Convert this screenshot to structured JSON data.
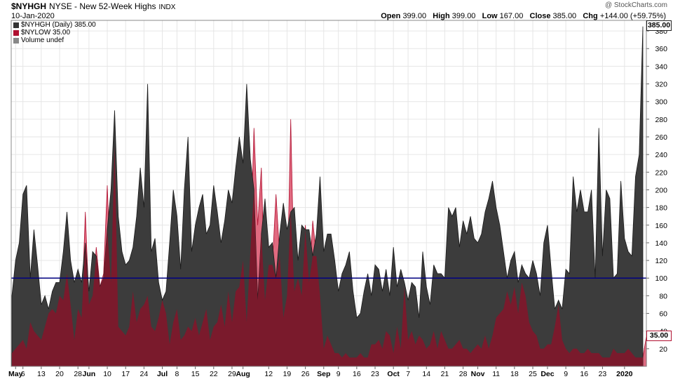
{
  "header": {
    "symbol": "$NYHGH",
    "description": "NYSE - New 52-Week Highs",
    "exchange": "INDX",
    "date": "10-Jan-2020",
    "watermark": "@ StockCharts.com",
    "open_label": "Open",
    "open_value": "399.00",
    "high_label": "High",
    "high_value": "399.00",
    "low_label": "Low",
    "low_value": "167.00",
    "close_label": "Close",
    "close_value": "385.00",
    "chg_label": "Chg",
    "chg_value": "+144.00 (+59.75%)"
  },
  "legend": [
    {
      "label": "$NYHGH (Daily) 385.00",
      "color": "#333333"
    },
    {
      "label": "$NYLOW 35.00",
      "color": "#b01030"
    },
    {
      "label": "Volume undef",
      "color": "#888888"
    }
  ],
  "last_labels": {
    "high": "385.00",
    "low": "35.00"
  },
  "colors": {
    "highs_fill": "#3c3c3c",
    "lows_fill": "#7a1a2c",
    "lows_light": "#e06a80",
    "ref_line": "#000080",
    "grid": "#e6e6e6"
  },
  "chart_data": {
    "type": "area",
    "title": "NYSE - New 52-Week Highs",
    "xlabel": "",
    "ylabel": "",
    "ylim": [
      0,
      392
    ],
    "yticks": [
      20,
      40,
      60,
      80,
      100,
      120,
      140,
      160,
      180,
      200,
      220,
      240,
      260,
      280,
      300,
      320,
      340,
      360,
      380
    ],
    "reference_line": 100,
    "grid": true,
    "legend_position": "top-left",
    "x_ticks": [
      {
        "label": "May",
        "index": 1
      },
      {
        "label": "6",
        "index": 3
      },
      {
        "label": "13",
        "index": 8
      },
      {
        "label": "20",
        "index": 13
      },
      {
        "label": "28",
        "index": 18
      },
      {
        "label": "Jun",
        "index": 21
      },
      {
        "label": "10",
        "index": 26
      },
      {
        "label": "17",
        "index": 31
      },
      {
        "label": "24",
        "index": 36
      },
      {
        "label": "Jul",
        "index": 41
      },
      {
        "label": "8",
        "index": 45
      },
      {
        "label": "15",
        "index": 50
      },
      {
        "label": "22",
        "index": 55
      },
      {
        "label": "29",
        "index": 60
      },
      {
        "label": "Aug",
        "index": 63
      },
      {
        "label": "12",
        "index": 70
      },
      {
        "label": "19",
        "index": 75
      },
      {
        "label": "26",
        "index": 80
      },
      {
        "label": "Sep",
        "index": 85
      },
      {
        "label": "9",
        "index": 89
      },
      {
        "label": "16",
        "index": 94
      },
      {
        "label": "23",
        "index": 99
      },
      {
        "label": "Oct",
        "index": 104
      },
      {
        "label": "7",
        "index": 108
      },
      {
        "label": "14",
        "index": 113
      },
      {
        "label": "21",
        "index": 118
      },
      {
        "label": "28",
        "index": 123
      },
      {
        "label": "Nov",
        "index": 127
      },
      {
        "label": "11",
        "index": 132
      },
      {
        "label": "18",
        "index": 137
      },
      {
        "label": "25",
        "index": 142
      },
      {
        "label": "Dec",
        "index": 146
      },
      {
        "label": "9",
        "index": 151
      },
      {
        "label": "16",
        "index": 156
      },
      {
        "label": "23",
        "index": 161
      },
      {
        "label": "2020",
        "index": 167
      }
    ],
    "series": [
      {
        "name": "$NYHGH (Daily)",
        "values": [
          80,
          120,
          140,
          195,
          205,
          100,
          155,
          115,
          70,
          80,
          65,
          85,
          95,
          95,
          130,
          175,
          120,
          95,
          110,
          95,
          140,
          85,
          130,
          125,
          90,
          100,
          155,
          200,
          290,
          170,
          130,
          115,
          120,
          135,
          170,
          225,
          180,
          320,
          130,
          145,
          95,
          75,
          85,
          140,
          200,
          170,
          110,
          200,
          260,
          130,
          160,
          180,
          195,
          150,
          160,
          205,
          175,
          140,
          165,
          200,
          185,
          225,
          260,
          230,
          320,
          235,
          200,
          75,
          150,
          190,
          135,
          140,
          100,
          150,
          185,
          155,
          175,
          180,
          120,
          160,
          155,
          155,
          125,
          150,
          215,
          130,
          150,
          150,
          120,
          85,
          105,
          115,
          130,
          85,
          55,
          60,
          85,
          105,
          80,
          115,
          110,
          85,
          110,
          80,
          135,
          90,
          110,
          95,
          75,
          95,
          90,
          55,
          130,
          90,
          70,
          115,
          105,
          105,
          100,
          180,
          170,
          180,
          135,
          165,
          150,
          170,
          145,
          140,
          150,
          175,
          190,
          210,
          180,
          160,
          130,
          100,
          120,
          130,
          95,
          115,
          105,
          100,
          120,
          105,
          80,
          140,
          160,
          110,
          65,
          75,
          65,
          110,
          105,
          215,
          175,
          200,
          175,
          175,
          200,
          100,
          270,
          125,
          200,
          190,
          100,
          105,
          210,
          145,
          130,
          125,
          215,
          240,
          385
        ]
      },
      {
        "name": "$NYLOW",
        "values": [
          15,
          20,
          25,
          30,
          20,
          50,
          40,
          35,
          30,
          45,
          60,
          65,
          60,
          80,
          75,
          105,
          70,
          30,
          65,
          55,
          175,
          70,
          80,
          135,
          90,
          105,
          205,
          95,
          250,
          45,
          40,
          35,
          45,
          85,
          50,
          65,
          70,
          80,
          45,
          40,
          55,
          75,
          60,
          25,
          50,
          65,
          30,
          35,
          45,
          40,
          55,
          35,
          50,
          65,
          30,
          45,
          50,
          70,
          45,
          85,
          50,
          85,
          90,
          120,
          50,
          130,
          270,
          160,
          225,
          75,
          115,
          115,
          195,
          125,
          55,
          80,
          280,
          85,
          100,
          80,
          160,
          95,
          165,
          125,
          80,
          20,
          35,
          25,
          15,
          15,
          10,
          15,
          10,
          10,
          10,
          15,
          10,
          10,
          25,
          25,
          30,
          20,
          40,
          35,
          15,
          45,
          20,
          90,
          30,
          40,
          25,
          35,
          30,
          20,
          25,
          40,
          20,
          40,
          30,
          20,
          20,
          25,
          30,
          20,
          20,
          15,
          20,
          25,
          20,
          35,
          20,
          35,
          55,
          60,
          65,
          85,
          70,
          90,
          60,
          95,
          80,
          50,
          40,
          35,
          20,
          20,
          25,
          25,
          45,
          70,
          30,
          20,
          15,
          20,
          20,
          15,
          15,
          20,
          15,
          15,
          15,
          10,
          10,
          10,
          20,
          15,
          15,
          15,
          20,
          15,
          10,
          10,
          10,
          35
        ]
      }
    ]
  }
}
